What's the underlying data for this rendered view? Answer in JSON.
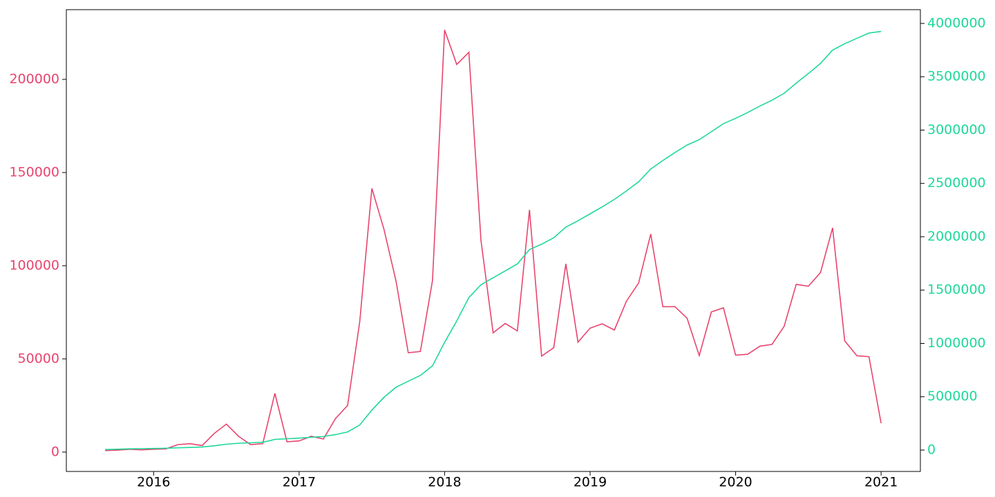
{
  "chart_data": {
    "type": "line",
    "x": [
      "2015-09",
      "2015-10",
      "2015-11",
      "2015-12",
      "2016-01",
      "2016-02",
      "2016-03",
      "2016-04",
      "2016-05",
      "2016-06",
      "2016-07",
      "2016-08",
      "2016-09",
      "2016-10",
      "2016-11",
      "2016-12",
      "2017-01",
      "2017-02",
      "2017-03",
      "2017-04",
      "2017-05",
      "2017-06",
      "2017-07",
      "2017-08",
      "2017-09",
      "2017-10",
      "2017-11",
      "2017-12",
      "2018-01",
      "2018-02",
      "2018-03",
      "2018-04",
      "2018-05",
      "2018-06",
      "2018-07",
      "2018-08",
      "2018-09",
      "2018-10",
      "2018-11",
      "2018-12",
      "2019-01",
      "2019-02",
      "2019-03",
      "2019-04",
      "2019-05",
      "2019-06",
      "2019-07",
      "2019-08",
      "2019-09",
      "2019-10",
      "2019-11",
      "2019-12",
      "2020-01",
      "2020-02",
      "2020-03",
      "2020-04",
      "2020-05",
      "2020-06",
      "2020-07",
      "2020-08",
      "2020-09",
      "2020-10",
      "2020-11",
      "2020-12",
      "2021-01"
    ],
    "series": [
      {
        "color": "#e8446e",
        "axis": "y",
        "values": [
          800,
          1000,
          1500,
          1200,
          1500,
          1700,
          4000,
          4500,
          3500,
          10000,
          15000,
          8500,
          4000,
          4500,
          31500,
          5500,
          6000,
          8500,
          7000,
          18000,
          25000,
          70000,
          141500,
          119500,
          91500,
          53300,
          54000,
          92000,
          226500,
          208000,
          214500,
          113500,
          64000,
          69000,
          65000,
          130000,
          51500,
          56000,
          101000,
          59000,
          66500,
          68800,
          65500,
          81000,
          90700,
          117000,
          78000,
          78000,
          71800,
          51800,
          75200,
          77400,
          52000,
          52500,
          56800,
          57800,
          67400,
          90000,
          89000,
          96300,
          120300,
          59700,
          51700,
          51200,
          15500
        ]
      },
      {
        "color": "#1ed89a",
        "axis": "y2",
        "values": [
          5000,
          8000,
          12000,
          13000,
          15000,
          17000,
          21000,
          25000,
          29000,
          40000,
          55000,
          64000,
          68000,
          73000,
          100000,
          106000,
          112000,
          120000,
          127000,
          145000,
          170000,
          235000,
          375000,
          495000,
          590000,
          645000,
          700000,
          790000,
          1010000,
          1210000,
          1430000,
          1550000,
          1615000,
          1680000,
          1745000,
          1880000,
          1930000,
          1990000,
          2090000,
          2150000,
          2215000,
          2280000,
          2350000,
          2430000,
          2515000,
          2635000,
          2715000,
          2790000,
          2860000,
          2910000,
          2985000,
          3060000,
          3110000,
          3165000,
          3225000,
          3280000,
          3345000,
          3440000,
          3530000,
          3625000,
          3750000,
          3810000,
          3860000,
          3910000,
          3925000
        ]
      }
    ],
    "xlim": [
      2015.4,
      2021.27
    ],
    "xticks": [
      2016,
      2017,
      2018,
      2019,
      2020,
      2021
    ],
    "ylim": [
      -10400,
      237400
    ],
    "yticks": [
      0,
      50000,
      100000,
      150000,
      200000
    ],
    "y2lim": [
      -200600,
      4129000
    ],
    "y2ticks": [
      0,
      500000,
      1000000,
      1500000,
      2000000,
      2500000,
      3000000,
      3500000,
      4000000
    ],
    "grid": false
  }
}
